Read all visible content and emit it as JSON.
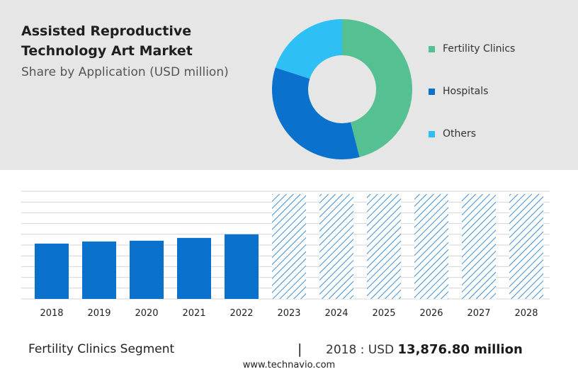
{
  "header": {
    "title": "Assisted Reproductive Technology Art Market",
    "subtitle": "Share by Application (USD million)"
  },
  "colors": {
    "fertility_clinics": "#55c193",
    "hospitals": "#0a72cc",
    "others": "#2ec0f5",
    "bar": "#0a72cc",
    "forecast_hatch": "#0a72cc",
    "panel_bg": "#e6e6e6"
  },
  "chart_data": [
    {
      "type": "pie",
      "style": "donut",
      "title": "Share by Application (USD million)",
      "slices": [
        {
          "label": "Fertility Clinics",
          "value": 46
        },
        {
          "label": "Hospitals",
          "value": 34
        },
        {
          "label": "Others",
          "value": 20
        }
      ],
      "legend": "right"
    },
    {
      "type": "bar",
      "categories": [
        "2018",
        "2019",
        "2020",
        "2021",
        "2022",
        "2023",
        "2024",
        "2025",
        "2026",
        "2027",
        "2028"
      ],
      "values": [
        13876.8,
        14400,
        14600,
        15300,
        16200,
        null,
        null,
        null,
        null,
        null,
        null
      ],
      "forecast_categories": [
        "2023",
        "2024",
        "2025",
        "2026",
        "2027",
        "2028"
      ],
      "forecast_style": "hatched",
      "ylim": [
        0,
        27000
      ],
      "grid": true
    }
  ],
  "bottom": {
    "segment_label": "Fertility Clinics Segment",
    "divider": "|",
    "stat_prefix": "2018 : USD",
    "stat_value": "13,876.80 million"
  },
  "footer": {
    "url": "www.technavio.com"
  }
}
